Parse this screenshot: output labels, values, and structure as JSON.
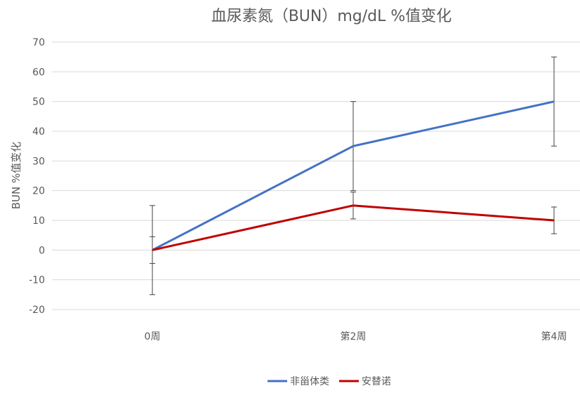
{
  "chart_data": {
    "type": "line",
    "title": "血尿素氮（BUN）mg/dL %值变化",
    "xlabel": "",
    "ylabel": "BUN %值变化",
    "categories": [
      "0周",
      "第2周",
      "第4周"
    ],
    "ylim": [
      -20,
      70
    ],
    "yticks": [
      -20,
      -10,
      0,
      10,
      20,
      30,
      40,
      50,
      60,
      70
    ],
    "grid": true,
    "legend_position": "bottom",
    "series": [
      {
        "name": "非甾体类",
        "color": "#4472c4",
        "values": [
          0,
          35,
          50
        ],
        "error_low": [
          -15,
          20,
          35
        ],
        "error_high": [
          15,
          50,
          65
        ]
      },
      {
        "name": "安替诺",
        "color": "#c00000",
        "values": [
          0,
          15,
          10
        ],
        "error_low": [
          -4.5,
          10.5,
          5.5
        ],
        "error_high": [
          4.5,
          19.5,
          14.5
        ]
      }
    ]
  }
}
